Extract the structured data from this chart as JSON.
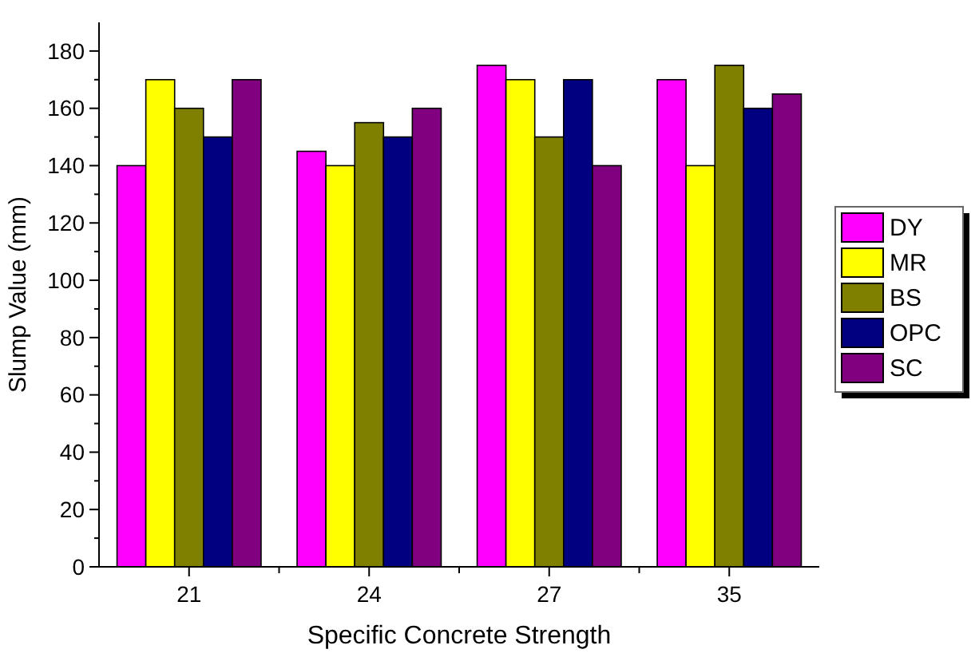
{
  "chart_data": {
    "type": "bar",
    "xlabel": "Specific Concrete Strength",
    "ylabel": "Slump Value (mm)",
    "categories": [
      "21",
      "24",
      "27",
      "35"
    ],
    "series": [
      {
        "name": "DY",
        "color": "#ff00ff",
        "values": [
          140,
          145,
          175,
          170
        ]
      },
      {
        "name": "MR",
        "color": "#ffff00",
        "values": [
          170,
          140,
          170,
          140
        ]
      },
      {
        "name": "BS",
        "color": "#808000",
        "values": [
          160,
          155,
          150,
          175
        ]
      },
      {
        "name": "OPC",
        "color": "#000080",
        "values": [
          150,
          150,
          170,
          160
        ]
      },
      {
        "name": "SC",
        "color": "#800080",
        "values": [
          170,
          160,
          140,
          165
        ]
      }
    ],
    "ylim": [
      0,
      190
    ],
    "yticks": [
      0,
      20,
      40,
      60,
      80,
      100,
      120,
      140,
      160,
      180
    ],
    "grid": false,
    "legend": "right"
  }
}
